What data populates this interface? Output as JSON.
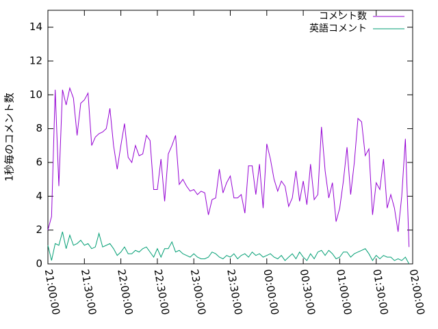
{
  "chart_data": {
    "type": "line",
    "y_label": "1秒毎のコメント数",
    "legend": "top-right",
    "xlim": [
      "21:00:00",
      "02:00:00"
    ],
    "xticks": [
      "21:00:00",
      "21:30:00",
      "22:00:00",
      "22:30:00",
      "23:00:00",
      "23:30:00",
      "00:00:00",
      "00:30:00",
      "01:00:00",
      "01:30:00",
      "02:00:00"
    ],
    "ylim": [
      0,
      15
    ],
    "yticks": [
      0,
      2,
      4,
      6,
      8,
      10,
      12,
      14
    ],
    "x": [
      "21:00:00",
      "21:03:00",
      "21:06:00",
      "21:09:00",
      "21:12:00",
      "21:15:00",
      "21:18:00",
      "21:21:00",
      "21:24:00",
      "21:27:00",
      "21:30:00",
      "21:33:00",
      "21:36:00",
      "21:39:00",
      "21:42:00",
      "21:45:00",
      "21:48:00",
      "21:51:00",
      "21:54:00",
      "21:57:00",
      "22:00:00",
      "22:03:00",
      "22:06:00",
      "22:09:00",
      "22:12:00",
      "22:15:00",
      "22:18:00",
      "22:21:00",
      "22:24:00",
      "22:27:00",
      "22:30:00",
      "22:33:00",
      "22:36:00",
      "22:39:00",
      "22:42:00",
      "22:45:00",
      "22:48:00",
      "22:51:00",
      "22:54:00",
      "22:57:00",
      "23:00:00",
      "23:03:00",
      "23:06:00",
      "23:09:00",
      "23:12:00",
      "23:15:00",
      "23:18:00",
      "23:21:00",
      "23:24:00",
      "23:27:00",
      "23:30:00",
      "23:33:00",
      "23:36:00",
      "23:39:00",
      "23:42:00",
      "23:45:00",
      "23:48:00",
      "23:51:00",
      "23:54:00",
      "23:57:00",
      "00:00:00",
      "00:03:00",
      "00:06:00",
      "00:09:00",
      "00:12:00",
      "00:15:00",
      "00:18:00",
      "00:21:00",
      "00:24:00",
      "00:27:00",
      "00:30:00",
      "00:33:00",
      "00:36:00",
      "00:39:00",
      "00:42:00",
      "00:45:00",
      "00:48:00",
      "00:51:00",
      "00:54:00",
      "00:57:00",
      "01:00:00",
      "01:03:00",
      "01:06:00",
      "01:09:00",
      "01:12:00",
      "01:15:00",
      "01:18:00",
      "01:21:00",
      "01:24:00",
      "01:27:00",
      "01:30:00",
      "01:33:00",
      "01:36:00",
      "01:39:00",
      "01:42:00",
      "01:45:00",
      "01:48:00",
      "01:51:00",
      "01:54:00",
      "01:57:00"
    ],
    "series": [
      {
        "name": "コメント数",
        "color": "#9400d3",
        "values": [
          2,
          2.8,
          10.3,
          4.6,
          10.3,
          9.4,
          10.4,
          9.8,
          7.6,
          9.5,
          9.7,
          10.1,
          7.0,
          7.5,
          7.7,
          7.8,
          8.0,
          9.2,
          7.0,
          5.6,
          7.0,
          8.3,
          6.3,
          6.0,
          7.0,
          6.4,
          6.5,
          7.6,
          7.3,
          4.4,
          4.4,
          6.2,
          3.7,
          6.5,
          7.0,
          7.6,
          4.7,
          5.0,
          4.6,
          4.3,
          4.4,
          4.1,
          4.3,
          4.2,
          2.9,
          3.8,
          3.9,
          5.6,
          4.2,
          4.8,
          5.2,
          3.9,
          3.9,
          4.1,
          3.0,
          5.8,
          5.8,
          4.1,
          5.9,
          3.3,
          7.1,
          6.2,
          5.0,
          4.3,
          4.9,
          4.6,
          3.4,
          3.9,
          5.5,
          3.7,
          4.9,
          3.5,
          5.9,
          3.8,
          4.1,
          8.1,
          5.5,
          3.9,
          4.8,
          2.5,
          3.3,
          4.9,
          6.9,
          4.1,
          6.0,
          8.6,
          8.4,
          6.4,
          6.8,
          2.9,
          4.8,
          4.4,
          6.2,
          3.3,
          4.1,
          3.3,
          1.9,
          4.0,
          7.4,
          1.0
        ]
      },
      {
        "name": "英語コメント",
        "color": "#009e73",
        "values": [
          1.1,
          0.2,
          1.2,
          1.1,
          1.9,
          0.9,
          1.7,
          1.1,
          1.2,
          1.4,
          1.1,
          1.2,
          0.9,
          1.0,
          1.8,
          1.0,
          1.1,
          1.2,
          0.9,
          0.5,
          0.7,
          1.0,
          0.6,
          0.6,
          0.8,
          0.7,
          0.9,
          1.0,
          0.7,
          0.4,
          0.9,
          0.4,
          0.9,
          0.9,
          1.3,
          0.7,
          0.8,
          0.6,
          0.5,
          0.4,
          0.6,
          0.4,
          0.3,
          0.3,
          0.4,
          0.7,
          0.6,
          0.4,
          0.3,
          0.5,
          0.4,
          0.6,
          0.3,
          0.5,
          0.6,
          0.4,
          0.7,
          0.5,
          0.6,
          0.4,
          0.5,
          0.6,
          0.4,
          0.3,
          0.5,
          0.2,
          0.4,
          0.6,
          0.3,
          0.7,
          0.4,
          0.2,
          0.6,
          0.3,
          0.7,
          0.8,
          0.5,
          0.8,
          0.6,
          0.3,
          0.4,
          0.7,
          0.7,
          0.4,
          0.6,
          0.7,
          0.8,
          0.9,
          0.6,
          0.2,
          0.5,
          0.3,
          0.5,
          0.4,
          0.4,
          0.2,
          0.3,
          0.2,
          0.4,
          0.0
        ]
      }
    ]
  }
}
